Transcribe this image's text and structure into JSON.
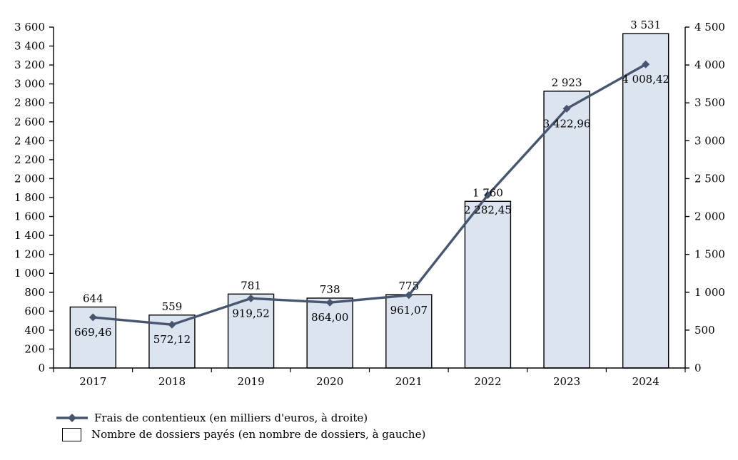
{
  "chart_data": {
    "type": "bar",
    "subtype": "combo-bar-line-dual-axis",
    "title": "",
    "categories": [
      "2017",
      "2018",
      "2019",
      "2020",
      "2021",
      "2022",
      "2023",
      "2024"
    ],
    "series": [
      {
        "name": "Nombre de dossiers payés (en nombre de dossiers, à gauche)",
        "type": "bar",
        "axis": "left",
        "values": [
          644,
          559,
          781,
          738,
          775,
          1760,
          2923,
          3531
        ],
        "labels": [
          "644",
          "559",
          "781",
          "738",
          "775",
          "1 760",
          "2 923",
          "3 531"
        ],
        "fill_color": "#DCE4F0",
        "border_color": "#000000"
      },
      {
        "name": "Frais de contentieux (en milliers d'euros, à droite)",
        "type": "line",
        "axis": "right",
        "values": [
          669.46,
          572.12,
          919.52,
          864.0,
          961.07,
          2282.45,
          3422.96,
          4008.42
        ],
        "labels": [
          "669,46",
          "572,12",
          "919,52",
          "864,00",
          "961,07",
          "2 282,45",
          "3 422,96",
          "4 008,42"
        ],
        "line_color": "#47566E",
        "marker": "diamond"
      }
    ],
    "left_axis": {
      "min": 0,
      "max": 3600,
      "step": 200
    },
    "right_axis": {
      "min": 0,
      "max": 4500,
      "step": 500
    },
    "grid": false,
    "legend_position": "bottom-left"
  }
}
